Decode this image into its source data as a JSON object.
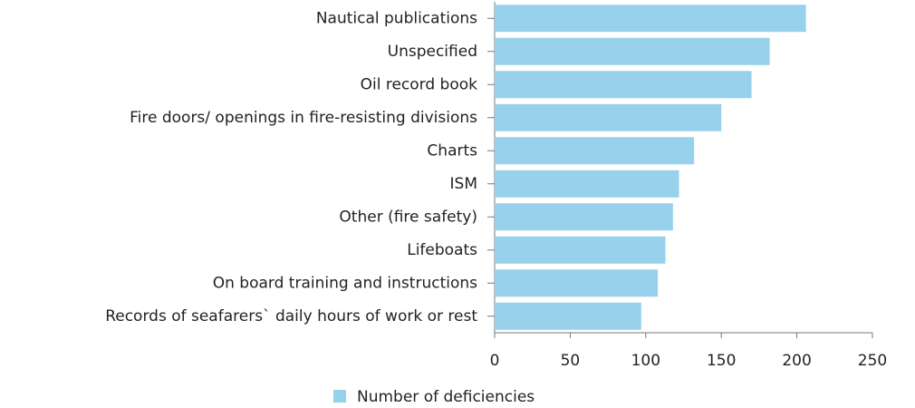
{
  "chart_data": {
    "type": "bar",
    "orientation": "horizontal",
    "categories": [
      "Nautical publications",
      "Unspecified",
      "Oil record book",
      "Fire doors/ openings in fire-resisting divisions",
      "Charts",
      "ISM",
      "Other (fire safety)",
      "Lifeboats",
      "On board training and instructions",
      "Records of seafarers` daily hours of work or rest"
    ],
    "series": [
      {
        "name": "Number of deficiencies",
        "color": "#97d1ec",
        "values": [
          206,
          182,
          170,
          150,
          132,
          122,
          118,
          113,
          108,
          97
        ]
      }
    ],
    "xlim": [
      0,
      250
    ],
    "xticks": [
      0,
      50,
      100,
      150,
      200,
      250
    ],
    "grid": false,
    "legend": "bottom"
  }
}
